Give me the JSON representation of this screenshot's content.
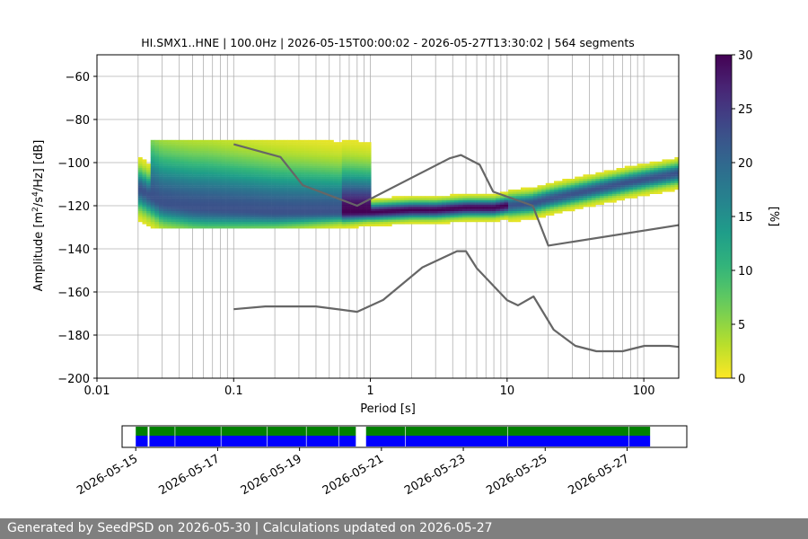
{
  "chart_data": {
    "type": "heatmap",
    "title": "HI.SMX1..HNE | 100.0Hz | 2026-05-15T00:00:02 - 2026-05-27T13:30:02 | 564 segments",
    "xlabel": "Period [s]",
    "ylabel": "Amplitude [m²/s⁴/Hz] [dB]",
    "xscale": "log",
    "xlim": [
      0.01,
      180
    ],
    "ylim": [
      -200,
      -50
    ],
    "xticks": [
      "0.01",
      "0.1",
      "1",
      "10",
      "100"
    ],
    "yticks": [
      "−60",
      "−80",
      "−100",
      "−120",
      "−140",
      "−160",
      "−180",
      "−200"
    ],
    "grid": "vertical log gridlines plus horizontal gridlines",
    "colorbar": {
      "label": "[%]",
      "range": [
        0,
        30
      ],
      "ticks": [
        "0",
        "5",
        "10",
        "15",
        "20",
        "25",
        "30"
      ],
      "colormap": "viridis_r"
    },
    "psd_mode": {
      "period": [
        0.02,
        0.03,
        0.05,
        0.1,
        0.2,
        0.3,
        0.5,
        0.8,
        1.0,
        2,
        3,
        5,
        8,
        10,
        15,
        20,
        40,
        80,
        180
      ],
      "amplitude": [
        -112,
        -119,
        -121,
        -122,
        -123,
        -123,
        -123,
        -123,
        -123,
        -122,
        -122,
        -121,
        -121,
        -120,
        -119,
        -117,
        -113,
        -109,
        -105
      ]
    },
    "nlnm": {
      "period": [
        0.1,
        0.17,
        0.4,
        0.8,
        1.24,
        2.4,
        4.3,
        5.0,
        6.0,
        10.0,
        12.0,
        15.6,
        21.9,
        31.6,
        45,
        70,
        101,
        154,
        180
      ],
      "amplitude": [
        -168,
        -166.7,
        -166.7,
        -169.2,
        -163.7,
        -148.6,
        -141.1,
        -141.1,
        -149,
        -163.8,
        -166.2,
        -162.1,
        -177.5,
        -185,
        -187.5,
        -187.5,
        -185,
        -185,
        -185.5
      ]
    },
    "nhnm": {
      "period": [
        0.1,
        0.22,
        0.32,
        0.8,
        3.8,
        4.6,
        6.3,
        7.9,
        15.4,
        20.0,
        180
      ],
      "amplitude": [
        -91.5,
        -97.4,
        -110.5,
        -120,
        -98,
        -96.5,
        -101,
        -113.5,
        -120,
        -138.5,
        -129
      ]
    }
  },
  "timeline": {
    "dates": [
      "2026-05-15",
      "2026-05-17",
      "2026-05-19",
      "2026-05-21",
      "2026-05-23",
      "2026-05-25",
      "2026-05-27"
    ],
    "range": [
      "2026-05-14T16:00",
      "2026-05-28T11:00"
    ],
    "data_colors": {
      "coverage": "#008000",
      "segments": "#0000ff"
    },
    "coverage": [
      [
        "2026-05-15T00:00",
        "2026-05-15T07:00"
      ],
      [
        "2026-05-15T08:00",
        "2026-05-20T09:00"
      ],
      [
        "2026-05-20T15:00",
        "2026-05-27T13:30"
      ]
    ],
    "segments": [
      [
        "2026-05-15T00:00",
        "2026-05-15T07:00"
      ],
      [
        "2026-05-15T08:00",
        "2026-05-20T09:00"
      ],
      [
        "2026-05-20T15:00",
        "2026-05-27T13:30"
      ]
    ],
    "segment_breaks": [
      "2026-05-15T23:00",
      "2026-05-17T02:00",
      "2026-05-18T05:00",
      "2026-05-19T04:00",
      "2026-05-19T23:00",
      "2026-05-21T14:00",
      "2026-05-24T02:00",
      "2026-05-27T01:00"
    ]
  },
  "footer": "Generated by SeedPSD on 2026-05-30 | Calculations updated on 2026-05-27"
}
